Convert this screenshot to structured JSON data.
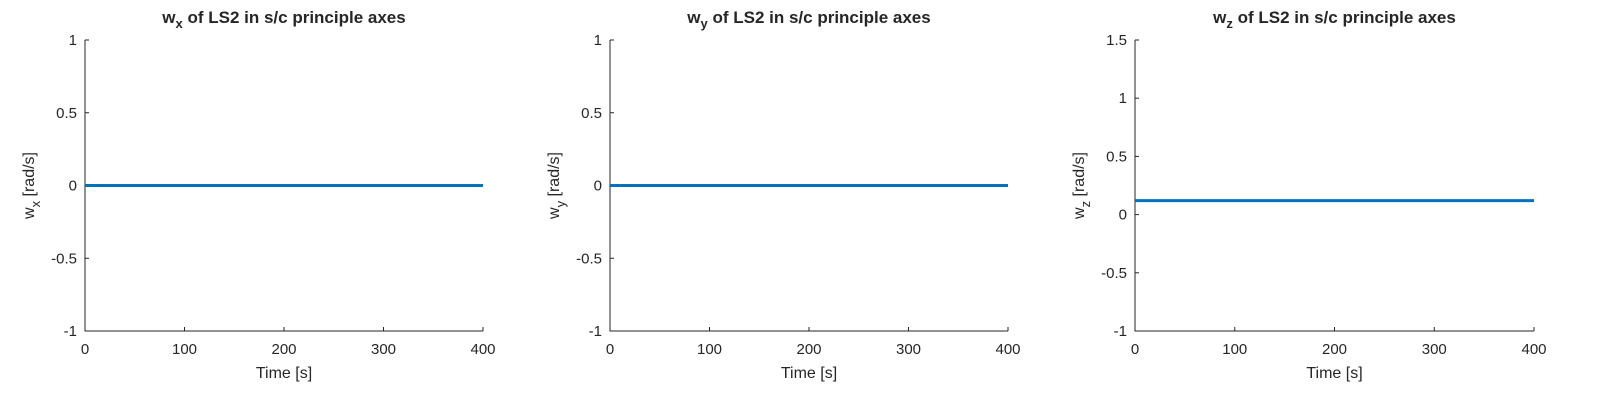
{
  "figure": {
    "background": "#ffffff",
    "line_color": "#0072BD"
  },
  "chart_data": [
    {
      "type": "line",
      "title": {
        "main": "w",
        "sub": "x",
        "rest": " of LS2 in s/c principle axes"
      },
      "xlabel": "Time [s]",
      "ylabel": {
        "main": "w",
        "sub": "x",
        "rest": " [rad/s]"
      },
      "xlim": [
        0,
        400
      ],
      "ylim": [
        -1,
        1
      ],
      "xticks": [
        0,
        100,
        200,
        300,
        400
      ],
      "xtick_labels": [
        "0",
        "100",
        "200",
        "300",
        "400"
      ],
      "yticks": [
        -1,
        -0.5,
        0,
        0.5,
        1
      ],
      "ytick_labels": [
        "-1",
        "-0.5",
        "0",
        "0.5",
        "1"
      ],
      "grid": false,
      "series": [
        {
          "x": [
            0,
            400
          ],
          "y": [
            0,
            0
          ]
        }
      ]
    },
    {
      "type": "line",
      "title": {
        "main": "w",
        "sub": "y",
        "rest": " of LS2 in s/c principle axes"
      },
      "xlabel": "Time [s]",
      "ylabel": {
        "main": "w",
        "sub": "y",
        "rest": " [rad/s]"
      },
      "xlim": [
        0,
        400
      ],
      "ylim": [
        -1,
        1
      ],
      "xticks": [
        0,
        100,
        200,
        300,
        400
      ],
      "xtick_labels": [
        "0",
        "100",
        "200",
        "300",
        "400"
      ],
      "yticks": [
        -1,
        -0.5,
        0,
        0.5,
        1
      ],
      "ytick_labels": [
        "-1",
        "-0.5",
        "0",
        "0.5",
        "1"
      ],
      "grid": false,
      "series": [
        {
          "x": [
            0,
            400
          ],
          "y": [
            0,
            0
          ]
        }
      ]
    },
    {
      "type": "line",
      "title": {
        "main": "w",
        "sub": "z",
        "rest": " of LS2 in s/c principle axes"
      },
      "xlabel": "Time [s]",
      "ylabel": {
        "main": "w",
        "sub": "z",
        "rest": " [rad/s]"
      },
      "xlim": [
        0,
        400
      ],
      "ylim": [
        -1,
        1.5
      ],
      "xticks": [
        0,
        100,
        200,
        300,
        400
      ],
      "xtick_labels": [
        "0",
        "100",
        "200",
        "300",
        "400"
      ],
      "yticks": [
        -1,
        -0.5,
        0,
        0.5,
        1,
        1.5
      ],
      "ytick_labels": [
        "-1",
        "-0.5",
        "0",
        "0.5",
        "1",
        "1.5"
      ],
      "grid": false,
      "series": [
        {
          "x": [
            0,
            400
          ],
          "y": [
            0.12,
            0.12
          ]
        }
      ]
    }
  ]
}
